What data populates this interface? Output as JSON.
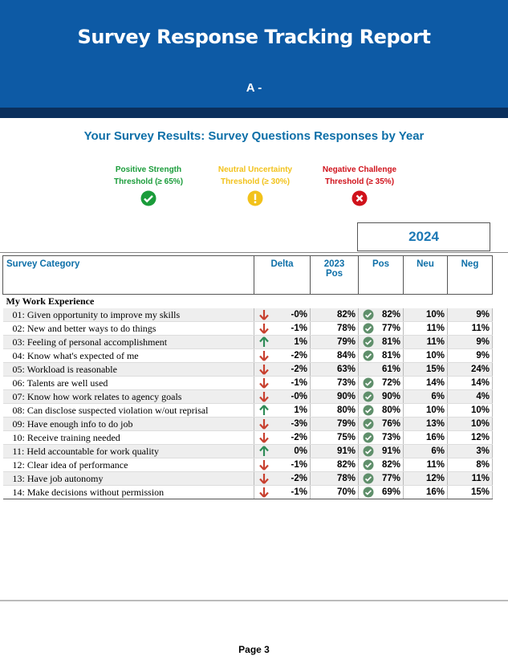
{
  "header": {
    "title": "Survey Response Tracking Report",
    "subtitle": "A -"
  },
  "section_title": "Your Survey Results: Survey Questions Responses by Year",
  "legend": [
    {
      "name": "Positive Strength",
      "threshold": "Threshold (≥ 65%)",
      "icon": "check",
      "color": "#1a9c3a"
    },
    {
      "name": "Neutral Uncertainty",
      "threshold": "Threshold (≥ 30%)",
      "icon": "exclaim",
      "color": "#f2c21b"
    },
    {
      "name": "Negative Challenge",
      "threshold": "Threshold (≥ 35%)",
      "icon": "cross",
      "color": "#d0121b"
    }
  ],
  "year": "2024",
  "table": {
    "columns": [
      "Survey Category",
      "Delta",
      "2023\nPos",
      "Pos",
      "Neu",
      "Neg"
    ],
    "group": "My Work Experience",
    "rows": [
      {
        "label": "01: Given opportunity to improve my skills",
        "direction": "down",
        "delta": "-0%",
        "pos_2023": "82%",
        "pos": "82%",
        "pos_check": true,
        "neu": "10%",
        "neg": "9%"
      },
      {
        "label": "02: New and better ways to do things",
        "direction": "down",
        "delta": "-1%",
        "pos_2023": "78%",
        "pos": "77%",
        "pos_check": true,
        "neu": "11%",
        "neg": "11%"
      },
      {
        "label": "03: Feeling of personal accomplishment",
        "direction": "up",
        "delta": "1%",
        "pos_2023": "79%",
        "pos": "81%",
        "pos_check": true,
        "neu": "11%",
        "neg": "9%"
      },
      {
        "label": "04: Know what's expected of me",
        "direction": "down",
        "delta": "-2%",
        "pos_2023": "84%",
        "pos": "81%",
        "pos_check": true,
        "neu": "10%",
        "neg": "9%"
      },
      {
        "label": "05: Workload is reasonable",
        "direction": "down",
        "delta": "-2%",
        "pos_2023": "63%",
        "pos": "61%",
        "pos_check": false,
        "neu": "15%",
        "neg": "24%"
      },
      {
        "label": "06: Talents are well used",
        "direction": "down",
        "delta": "-1%",
        "pos_2023": "73%",
        "pos": "72%",
        "pos_check": true,
        "neu": "14%",
        "neg": "14%"
      },
      {
        "label": "07: Know how work relates to agency goals",
        "direction": "down",
        "delta": "-0%",
        "pos_2023": "90%",
        "pos": "90%",
        "pos_check": true,
        "neu": "6%",
        "neg": "4%"
      },
      {
        "label": "08: Can disclose suspected violation w/out reprisal",
        "direction": "up",
        "delta": "1%",
        "pos_2023": "80%",
        "pos": "80%",
        "pos_check": true,
        "neu": "10%",
        "neg": "10%"
      },
      {
        "label": "09: Have enough info to do job",
        "direction": "down",
        "delta": "-3%",
        "pos_2023": "79%",
        "pos": "76%",
        "pos_check": true,
        "neu": "13%",
        "neg": "10%"
      },
      {
        "label": "10: Receive training needed",
        "direction": "down",
        "delta": "-2%",
        "pos_2023": "75%",
        "pos": "73%",
        "pos_check": true,
        "neu": "16%",
        "neg": "12%"
      },
      {
        "label": "11: Held accountable for work quality",
        "direction": "up",
        "delta": "0%",
        "pos_2023": "91%",
        "pos": "91%",
        "pos_check": true,
        "neu": "6%",
        "neg": "3%"
      },
      {
        "label": "12: Clear idea of performance",
        "direction": "down",
        "delta": "-1%",
        "pos_2023": "82%",
        "pos": "82%",
        "pos_check": true,
        "neu": "11%",
        "neg": "8%"
      },
      {
        "label": "13: Have job autonomy",
        "direction": "down",
        "delta": "-2%",
        "pos_2023": "78%",
        "pos": "77%",
        "pos_check": true,
        "neu": "12%",
        "neg": "11%"
      },
      {
        "label": "14: Make decisions without permission",
        "direction": "down",
        "delta": "-1%",
        "pos_2023": "70%",
        "pos": "69%",
        "pos_check": true,
        "neu": "16%",
        "neg": "15%"
      }
    ]
  },
  "footer": "Page 3"
}
